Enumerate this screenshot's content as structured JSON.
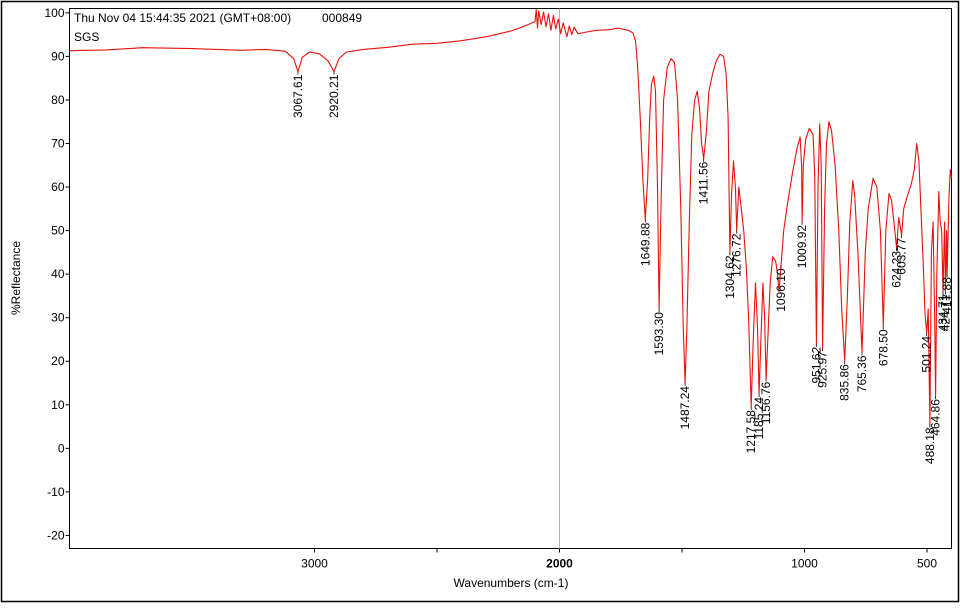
{
  "header": {
    "timestamp": "Thu Nov 04 15:44:35 2021 (GMT+08:00)",
    "file_id": "000849",
    "sample": "SGS"
  },
  "colors": {
    "spectrum": "#e8120c",
    "axis": "#000000",
    "cursor": "#b0b0b0"
  },
  "chart_data": {
    "type": "line",
    "title": "",
    "xlabel": "Wavenumbers (cm-1)",
    "ylabel": "%Reflectance",
    "xlim": [
      4000,
      400
    ],
    "ylim": [
      -23,
      101
    ],
    "x_ticks": [
      "3000",
      "2500",
      "2000",
      "1500",
      "1000",
      "500"
    ],
    "x_tick_values": [
      3000,
      2500,
      2000,
      1500,
      1000,
      500
    ],
    "x_tick_labels": [
      "3000",
      "",
      "2000",
      "",
      "1000",
      "500"
    ],
    "y_ticks": [
      -20,
      -10,
      0,
      10,
      20,
      30,
      40,
      50,
      60,
      70,
      80,
      90,
      100
    ],
    "y_tick_labels": [
      "-20",
      "-10",
      "0",
      "10",
      "20",
      "30",
      "40",
      "50",
      "60",
      "70",
      "80",
      "90",
      "100"
    ],
    "cursor_x": 2000,
    "grid": false,
    "series": [
      {
        "points": [
          [
            4000,
            91.3
          ],
          [
            3850,
            91.5
          ],
          [
            3700,
            92.0
          ],
          [
            3500,
            91.8
          ],
          [
            3300,
            91.4
          ],
          [
            3200,
            91.6
          ],
          [
            3120,
            91.2
          ],
          [
            3085,
            89.5
          ],
          [
            3067.61,
            86.5
          ],
          [
            3050,
            89.8
          ],
          [
            3020,
            91.0
          ],
          [
            2980,
            90.6
          ],
          [
            2945,
            89.0
          ],
          [
            2920.21,
            86.5
          ],
          [
            2900,
            89.5
          ],
          [
            2870,
            91.0
          ],
          [
            2800,
            91.6
          ],
          [
            2700,
            92.1
          ],
          [
            2600,
            92.8
          ],
          [
            2500,
            93.0
          ],
          [
            2400,
            93.6
          ],
          [
            2300,
            94.5
          ],
          [
            2200,
            95.8
          ],
          [
            2150,
            96.8
          ],
          [
            2120,
            97.5
          ],
          [
            2100,
            98.0
          ],
          [
            2095,
            100.8
          ],
          [
            2090,
            96.5
          ],
          [
            2085,
            100.5
          ],
          [
            2075,
            97.3
          ],
          [
            2065,
            100.2
          ],
          [
            2055,
            96.8
          ],
          [
            2045,
            99.8
          ],
          [
            2035,
            96.0
          ],
          [
            2025,
            99.4
          ],
          [
            2015,
            96.3
          ],
          [
            2005,
            98.6
          ],
          [
            1995,
            95.2
          ],
          [
            1985,
            97.7
          ],
          [
            1970,
            94.5
          ],
          [
            1960,
            97.0
          ],
          [
            1950,
            95.0
          ],
          [
            1940,
            96.7
          ],
          [
            1925,
            95.2
          ],
          [
            1900,
            95.5
          ],
          [
            1850,
            96.0
          ],
          [
            1800,
            96.1
          ],
          [
            1760,
            96.5
          ],
          [
            1720,
            96.0
          ],
          [
            1700,
            95.4
          ],
          [
            1690,
            93.5
          ],
          [
            1685,
            90.5
          ],
          [
            1680,
            86.5
          ],
          [
            1670,
            75.0
          ],
          [
            1660,
            62.0
          ],
          [
            1649.88,
            52.5
          ],
          [
            1640,
            62.0
          ],
          [
            1632,
            76.0
          ],
          [
            1625,
            83.5
          ],
          [
            1615,
            85.5
          ],
          [
            1608,
            82.0
          ],
          [
            1600,
            60.0
          ],
          [
            1593.3,
            32.0
          ],
          [
            1585,
            58.0
          ],
          [
            1575,
            80.0
          ],
          [
            1560,
            87.5
          ],
          [
            1545,
            89.5
          ],
          [
            1530,
            88.5
          ],
          [
            1518,
            80.0
          ],
          [
            1505,
            55.0
          ],
          [
            1495,
            28.0
          ],
          [
            1487.24,
            15.0
          ],
          [
            1480,
            28.0
          ],
          [
            1470,
            52.0
          ],
          [
            1460,
            72.0
          ],
          [
            1448,
            80.0
          ],
          [
            1438,
            82.0
          ],
          [
            1428,
            78.0
          ],
          [
            1420,
            70.0
          ],
          [
            1411.56,
            66.5
          ],
          [
            1400,
            73.0
          ],
          [
            1390,
            82.0
          ],
          [
            1375,
            86.0
          ],
          [
            1360,
            89.0
          ],
          [
            1345,
            90.5
          ],
          [
            1330,
            90.0
          ],
          [
            1320,
            86.0
          ],
          [
            1312,
            76.0
          ],
          [
            1304.62,
            45.0
          ],
          [
            1298,
            58.0
          ],
          [
            1290,
            66.0
          ],
          [
            1282,
            60.0
          ],
          [
            1276.72,
            50.0
          ],
          [
            1268,
            60.0
          ],
          [
            1258,
            55.0
          ],
          [
            1248,
            50.0
          ],
          [
            1238,
            42.0
          ],
          [
            1228,
            30.0
          ],
          [
            1217.58,
            9.5
          ],
          [
            1210,
            24.0
          ],
          [
            1200,
            38.0
          ],
          [
            1192,
            28.0
          ],
          [
            1185.24,
            12.5
          ],
          [
            1178,
            25.0
          ],
          [
            1170,
            38.0
          ],
          [
            1163,
            30.0
          ],
          [
            1156.76,
            16.0
          ],
          [
            1150,
            25.0
          ],
          [
            1140,
            38.0
          ],
          [
            1130,
            44.0
          ],
          [
            1118,
            43.0
          ],
          [
            1110,
            40.0
          ],
          [
            1104,
            36.0
          ],
          [
            1096.1,
            42.0
          ],
          [
            1085,
            50.0
          ],
          [
            1070,
            56.0
          ],
          [
            1050,
            63.0
          ],
          [
            1030,
            69.0
          ],
          [
            1018,
            71.5
          ],
          [
            1012,
            65.0
          ],
          [
            1009.92,
            52.0
          ],
          [
            1005,
            65.0
          ],
          [
            995,
            71.0
          ],
          [
            980,
            73.5
          ],
          [
            965,
            72.0
          ],
          [
            958,
            62.0
          ],
          [
            951.62,
            24.0
          ],
          [
            945,
            60.0
          ],
          [
            938,
            74.5
          ],
          [
            932,
            65.0
          ],
          [
            925.97,
            23.0
          ],
          [
            918,
            55.0
          ],
          [
            910,
            70.0
          ],
          [
            900,
            75.0
          ],
          [
            890,
            73.0
          ],
          [
            875,
            65.0
          ],
          [
            860,
            50.0
          ],
          [
            848,
            32.0
          ],
          [
            835.86,
            20.0
          ],
          [
            825,
            35.0
          ],
          [
            815,
            52.0
          ],
          [
            803,
            61.5
          ],
          [
            795,
            58.0
          ],
          [
            782,
            45.0
          ],
          [
            765.36,
            22.0
          ],
          [
            752,
            45.0
          ],
          [
            740,
            55.0
          ],
          [
            720,
            62.0
          ],
          [
            705,
            60.0
          ],
          [
            690,
            50.0
          ],
          [
            678.5,
            28.0
          ],
          [
            668,
            50.0
          ],
          [
            655,
            58.5
          ],
          [
            645,
            57.0
          ],
          [
            635,
            52.0
          ],
          [
            624.23,
            46.0
          ],
          [
            615,
            53.0
          ],
          [
            603.77,
            49.0
          ],
          [
            595,
            55.0
          ],
          [
            580,
            58.0
          ],
          [
            565,
            60.5
          ],
          [
            552,
            64.0
          ],
          [
            542,
            70.0
          ],
          [
            533,
            66.0
          ],
          [
            525,
            55.0
          ],
          [
            515,
            42.0
          ],
          [
            508,
            31.0
          ],
          [
            501.24,
            26.5
          ],
          [
            495,
            32.0
          ],
          [
            488.18,
            5.5
          ],
          [
            482,
            45.0
          ],
          [
            475,
            52.0
          ],
          [
            468,
            28.0
          ],
          [
            464.86,
            12.0
          ],
          [
            460,
            40.0
          ],
          [
            452,
            59.0
          ],
          [
            446,
            52.0
          ],
          [
            440,
            50.0
          ],
          [
            434.71,
            36.0
          ],
          [
            428,
            52.0
          ],
          [
            424.71,
            36.0
          ],
          [
            420,
            50.0
          ],
          [
            417.88,
            40.0
          ],
          [
            410,
            58.0
          ],
          [
            405,
            64.0
          ],
          [
            400,
            62.0
          ]
        ]
      }
    ],
    "peak_labels": [
      {
        "x": 3067.61,
        "y": 86.5,
        "label": "3067.61"
      },
      {
        "x": 2920.21,
        "y": 86.5,
        "label": "2920.21"
      },
      {
        "x": 1649.88,
        "y": 52.5,
        "label": "1649.88"
      },
      {
        "x": 1593.3,
        "y": 32.0,
        "label": "1593.30"
      },
      {
        "x": 1487.24,
        "y": 15.0,
        "label": "1487.24"
      },
      {
        "x": 1411.56,
        "y": 66.5,
        "label": "1411.56"
      },
      {
        "x": 1304.62,
        "y": 45.0,
        "label": "1304.62"
      },
      {
        "x": 1276.72,
        "y": 50.0,
        "label": "1276.72"
      },
      {
        "x": 1217.58,
        "y": 9.5,
        "label": "1217.58"
      },
      {
        "x": 1185.24,
        "y": 12.5,
        "label": "1185.24"
      },
      {
        "x": 1156.76,
        "y": 16.0,
        "label": "1156.76"
      },
      {
        "x": 1096.1,
        "y": 42.0,
        "label": "1096.10"
      },
      {
        "x": 1009.92,
        "y": 52.0,
        "label": "1009.92"
      },
      {
        "x": 951.62,
        "y": 24.0,
        "label": "951.62"
      },
      {
        "x": 925.97,
        "y": 23.0,
        "label": "925.97"
      },
      {
        "x": 835.86,
        "y": 20.0,
        "label": "835.86"
      },
      {
        "x": 765.36,
        "y": 22.0,
        "label": "765.36"
      },
      {
        "x": 678.5,
        "y": 28.0,
        "label": "678.50"
      },
      {
        "x": 624.23,
        "y": 46.0,
        "label": "624.23"
      },
      {
        "x": 603.77,
        "y": 49.0,
        "label": "603.77"
      },
      {
        "x": 501.24,
        "y": 26.5,
        "label": "501.24"
      },
      {
        "x": 488.18,
        "y": 5.5,
        "label": "488.18"
      },
      {
        "x": 464.86,
        "y": 12.0,
        "label": "464.86"
      },
      {
        "x": 434.71,
        "y": 36.0,
        "label": "434.71"
      },
      {
        "x": 424.71,
        "y": 36.0,
        "label": "424.71"
      },
      {
        "x": 417.88,
        "y": 40.0,
        "label": "417.88"
      }
    ]
  }
}
